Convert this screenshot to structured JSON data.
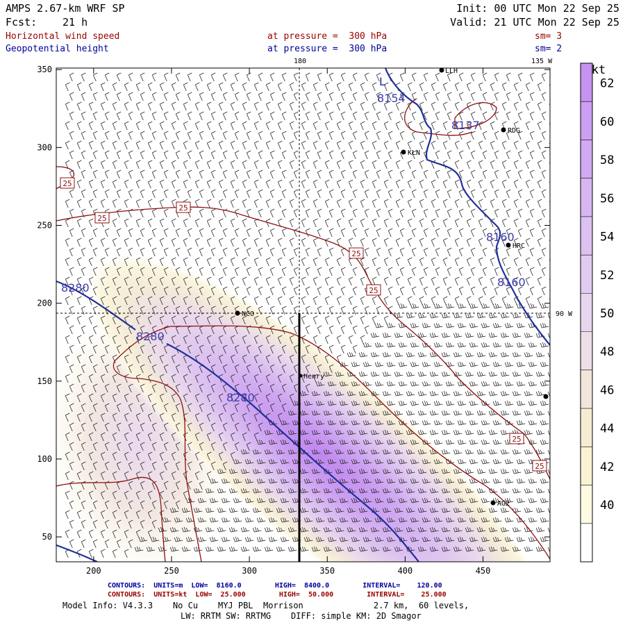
{
  "header": {
    "model": "AMPS 2.67-km WRF SP",
    "fcst_label": "Fcst:",
    "fcst_value": "21 h",
    "init": "Init: 00 UTC Mon 22 Sep 25",
    "valid": "Valid: 21 UTC Mon 22 Sep 25",
    "field1": {
      "name": "Horizontal wind speed",
      "level": "at pressure =  300 hPa",
      "sm": "sm= 3"
    },
    "field2": {
      "name": "Geopotential height",
      "level": "at pressure =  300 hPa",
      "sm": "sm= 2"
    }
  },
  "map": {
    "x_ticks": [
      "200",
      "250",
      "300",
      "350",
      "400",
      "450"
    ],
    "y_ticks": [
      "50",
      "100",
      "150",
      "200",
      "250",
      "300",
      "350"
    ],
    "meridian_labels": {
      "top": "180",
      "top_right": "135 W",
      "right": "90 W"
    },
    "stations": [
      "LLH",
      "RDG",
      "KLN",
      "HRC",
      "NCO",
      "Henry",
      "AG2"
    ],
    "height_contours": [
      "8154",
      "8137",
      "8160",
      "8160",
      "8280",
      "8280",
      "8280"
    ],
    "speed_contours": [
      "25",
      "25",
      "25",
      "25",
      "25",
      "25",
      "25"
    ],
    "low_marker": "L"
  },
  "colorbar": {
    "unit": "kt",
    "levels": [
      "62",
      "60",
      "58",
      "56",
      "54",
      "52",
      "50",
      "48",
      "46",
      "44",
      "42",
      "40"
    ],
    "colors": [
      "#c693f0",
      "#cb9ff1",
      "#d1aaf1",
      "#d7b6f1",
      "#dcc1f1",
      "#e1cbf0",
      "#e7d6ee",
      "#ecdfe7",
      "#f1e6dc",
      "#f5ecd3",
      "#f9f3d3",
      "#fdfae2"
    ]
  },
  "footer": {
    "contours_blue": "CONTOURS:  UNITS=m  LOW=  8160.0        HIGH=  8400.0        INTERVAL=    120.00",
    "contours_red": "CONTOURS:  UNITS=kt  LOW=  25.000        HIGH=  50.000        INTERVAL=    25.000",
    "model_info": "Model Info: V4.3.3    No Cu    MYJ PBL  Morrison              2.7 km,  60 levels,",
    "model_info2": "LW: RRTM SW: RRTMG    DIFF: simple KM: 2D Smagor"
  },
  "colors": {
    "height": "#1f2f9a",
    "speed": "#8c0f0f",
    "text_red": "#990000",
    "text_blue": "#000099"
  }
}
